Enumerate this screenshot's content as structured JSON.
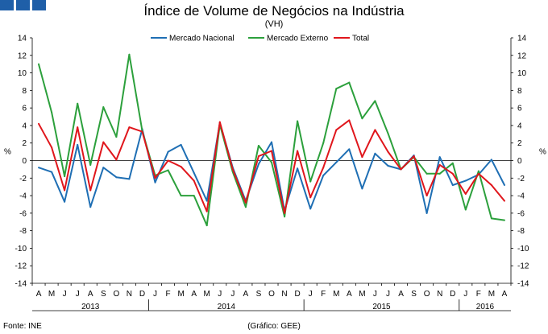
{
  "brand_colors": {
    "logo": "#1f5fa8"
  },
  "footer": {
    "source": "Fonte: INE",
    "credit": "(Gráfico: GEE)"
  },
  "chart_data": {
    "type": "line",
    "title": "Índice de Volume de Negócios na Indústria",
    "subtitle": "(VH)",
    "ylabel": "%",
    "y2label": "%",
    "ylim": [
      -14,
      14
    ],
    "yticks": [
      14,
      12,
      10,
      8,
      6,
      4,
      2,
      0,
      -2,
      -4,
      -6,
      -8,
      -10,
      -12,
      -14
    ],
    "legend_position": "top-center",
    "categories": [
      "A",
      "M",
      "J",
      "J",
      "A",
      "S",
      "O",
      "N",
      "D",
      "J",
      "F",
      "M",
      "A",
      "M",
      "J",
      "J",
      "A",
      "S",
      "O",
      "N",
      "D",
      "J",
      "F",
      "M",
      "A",
      "M",
      "J",
      "J",
      "A",
      "S",
      "O",
      "N",
      "D",
      "J",
      "F",
      "M",
      "A"
    ],
    "years": [
      {
        "label": "2013",
        "start": 0,
        "end": 8
      },
      {
        "label": "2014",
        "start": 9,
        "end": 20
      },
      {
        "label": "2015",
        "start": 21,
        "end": 32
      },
      {
        "label": "2016",
        "start": 33,
        "end": 36
      }
    ],
    "series": [
      {
        "name": "Mercado Nacional",
        "color": "#1f6fb4",
        "values": [
          -0.8,
          -1.3,
          -4.7,
          1.8,
          -5.3,
          -0.8,
          -1.9,
          -2.1,
          3.6,
          -2.5,
          1.0,
          1.8,
          -1.4,
          -4.6,
          4.3,
          -0.8,
          -4.6,
          -0.4,
          2.1,
          -5.7,
          -0.9,
          -5.5,
          -1.7,
          -0.2,
          1.3,
          -3.2,
          0.8,
          -0.6,
          -1.0,
          0.6,
          -6.0,
          0.4,
          -2.8,
          -2.3,
          -1.6,
          0.1,
          -2.8
        ]
      },
      {
        "name": "Mercado Externo",
        "color": "#2ca03c",
        "values": [
          11.0,
          5.5,
          -1.8,
          6.5,
          -0.5,
          6.1,
          2.7,
          12.1,
          3.4,
          -1.7,
          -1.1,
          -4.0,
          -4.0,
          -7.4,
          4.1,
          -1.3,
          -5.3,
          1.7,
          -0.2,
          -6.4,
          4.5,
          -2.4,
          2.0,
          8.2,
          8.9,
          4.8,
          6.8,
          3.1,
          -1.0,
          0.4,
          -1.5,
          -1.5,
          -0.3,
          -5.6,
          -1.2,
          -6.6,
          -6.8
        ]
      },
      {
        "name": "Total",
        "color": "#e0161c",
        "values": [
          4.2,
          1.5,
          -3.4,
          3.8,
          -3.4,
          2.1,
          0.1,
          3.8,
          3.3,
          -2.0,
          0.0,
          -0.7,
          -2.3,
          -5.8,
          4.4,
          -1.0,
          -4.8,
          0.5,
          1.1,
          -6.0,
          1.1,
          -4.2,
          -0.8,
          3.5,
          4.6,
          0.4,
          3.5,
          1.0,
          -1.0,
          0.5,
          -4.0,
          -0.5,
          -1.5,
          -3.8,
          -1.5,
          -2.8,
          -4.6
        ]
      }
    ]
  }
}
